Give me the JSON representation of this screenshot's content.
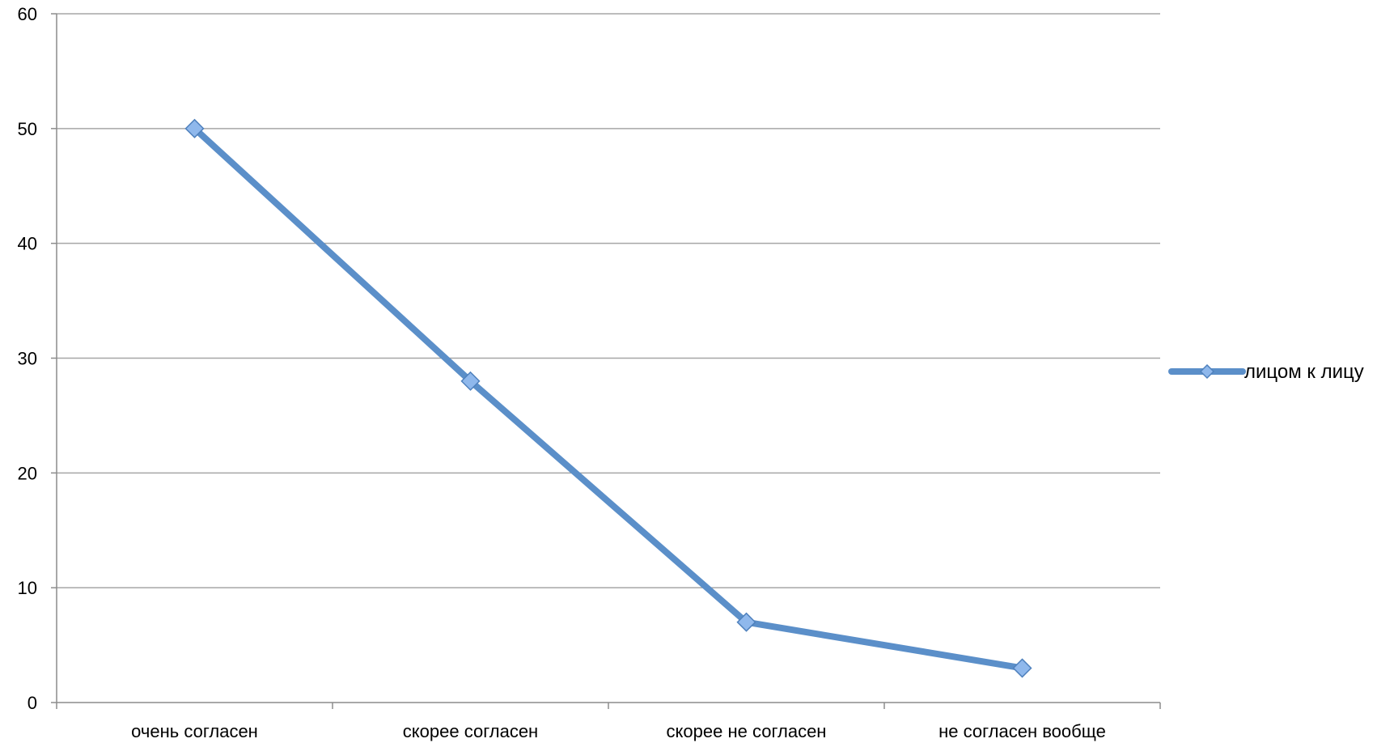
{
  "chart_data": {
    "type": "line",
    "categories": [
      "очень согласен",
      "скорее согласен",
      "скорее не согласен",
      "не согласен вообще"
    ],
    "series": [
      {
        "name": "лицом к лицу",
        "values": [
          50,
          28,
          7,
          3
        ]
      }
    ],
    "ylim": [
      0,
      60
    ],
    "yticks": [
      0,
      10,
      20,
      30,
      40,
      50,
      60
    ],
    "grid": true,
    "legend_position": "right",
    "colors": {
      "line": "#5b8fc9",
      "marker_fill": "#8fb8ec",
      "marker_stroke": "#4f81bd",
      "grid": "#a6a6a6",
      "axis": "#8c8c8c"
    }
  }
}
